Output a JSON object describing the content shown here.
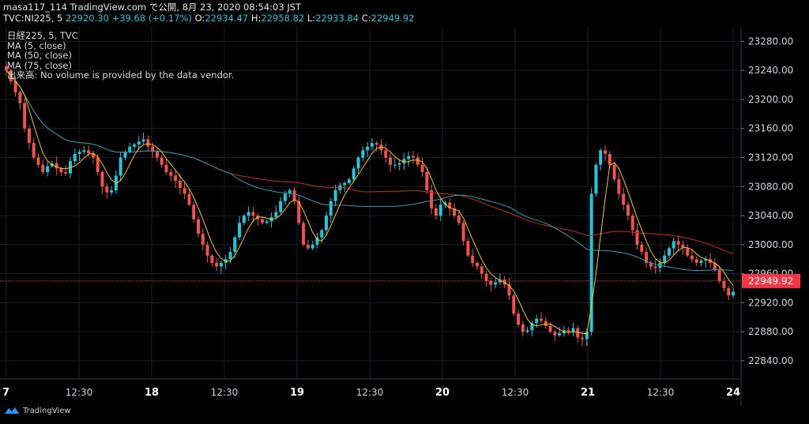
{
  "header": {
    "line1": "masa117_114 TradingView.com で公開, 8月 23, 2020 08:54:03 JST",
    "symbol": "TVC:NI225, 5",
    "last": "22920.30",
    "change": "+39.68 (+0.17%)",
    "o_label": "O:",
    "o_value": "22934.47",
    "h_label": "H:",
    "h_value": "22958.82",
    "l_label": "L:",
    "l_value": "22933.84",
    "c_label": "C:",
    "c_value": "22949.92"
  },
  "legend": {
    "title": "日経225, 5, TVC",
    "ma5": "MA (5, close)",
    "ma50": "MA (50, close)",
    "ma75": "MA (75, close)",
    "volume": "出来高: No volume is provided by the data vendor."
  },
  "footer": {
    "brand": "TradingView"
  },
  "colors": {
    "up": "#26c6da",
    "down": "#ef5350",
    "ma5": "#f5c518",
    "ma50": "#26a0b4",
    "ma75": "#c62828",
    "price_tag": "#f23645"
  },
  "chart_data": {
    "type": "candlestick",
    "y_ticks": [
      23280,
      23240,
      23200,
      23160,
      23120,
      23080,
      23040,
      23000,
      22960,
      22920,
      22880,
      22840
    ],
    "ylim": [
      22815,
      23300
    ],
    "current_price": 22949.92,
    "current_price_label": "22949.92",
    "x_ticks": [
      {
        "label": "7",
        "bold": true,
        "pos": 0.0
      },
      {
        "label": "12:30",
        "bold": false,
        "pos": 0.1
      },
      {
        "label": "18",
        "bold": true,
        "pos": 0.2
      },
      {
        "label": "12:30",
        "bold": false,
        "pos": 0.3
      },
      {
        "label": "19",
        "bold": true,
        "pos": 0.4
      },
      {
        "label": "12:30",
        "bold": false,
        "pos": 0.5
      },
      {
        "label": "20",
        "bold": true,
        "pos": 0.6
      },
      {
        "label": "12:30",
        "bold": false,
        "pos": 0.7
      },
      {
        "label": "21",
        "bold": true,
        "pos": 0.8
      },
      {
        "label": "12:30",
        "bold": false,
        "pos": 0.9
      },
      {
        "label": "24",
        "bold": true,
        "pos": 1.0
      }
    ],
    "closes": [
      [
        23240,
        23225,
        23210,
        23195,
        23160,
        23140,
        23120,
        23110,
        23100,
        23108,
        23112,
        23105,
        23100,
        23098,
        23115,
        23125,
        23128,
        23130,
        23126,
        23120,
        23100,
        23080,
        23072,
        23075,
        23095,
        23120,
        23128,
        23135,
        23138,
        23142,
        23145,
        23135,
        23128,
        23120,
        23110,
        23100,
        23095,
        23088,
        23078,
        23070
      ],
      [
        23055,
        23035,
        23015,
        23000,
        22985,
        22975,
        22970,
        22975,
        22980,
        22990,
        23010,
        23030,
        23040,
        23045,
        23040,
        23035,
        23030,
        23032,
        23038,
        23045,
        23060,
        23070,
        23075,
        23060,
        23030,
        23000,
        22995,
        23000,
        23010,
        23020,
        23040,
        23060,
        23075,
        23082,
        23085,
        23090,
        23105,
        23120,
        23130,
        23135
      ],
      [
        23140,
        23138,
        23130,
        23120,
        23110,
        23110,
        23112,
        23118,
        23122,
        23120,
        23110,
        23100,
        23075,
        23050,
        23040,
        23055,
        23058,
        23050,
        23040,
        23030,
        23005,
        22985,
        22975,
        22970,
        22960,
        22950,
        22945,
        22948,
        22952,
        22945,
        22930,
        22905,
        22890,
        22880,
        22882,
        22892,
        22898,
        22895,
        22888,
        22880
      ],
      [
        22875,
        22878,
        22882,
        22880,
        22885,
        22872,
        22870,
        22880,
        23070,
        23110,
        23130,
        23125,
        23110,
        23090,
        23070,
        23055,
        23040,
        23020,
        23000,
        22990,
        22975,
        22970,
        22968,
        22975,
        22985,
        22995,
        23005,
        23000,
        22995,
        22985,
        22980,
        22975,
        22978,
        22980,
        22975,
        22965,
        22950,
        22940,
        22930,
        22935
      ]
    ]
  }
}
